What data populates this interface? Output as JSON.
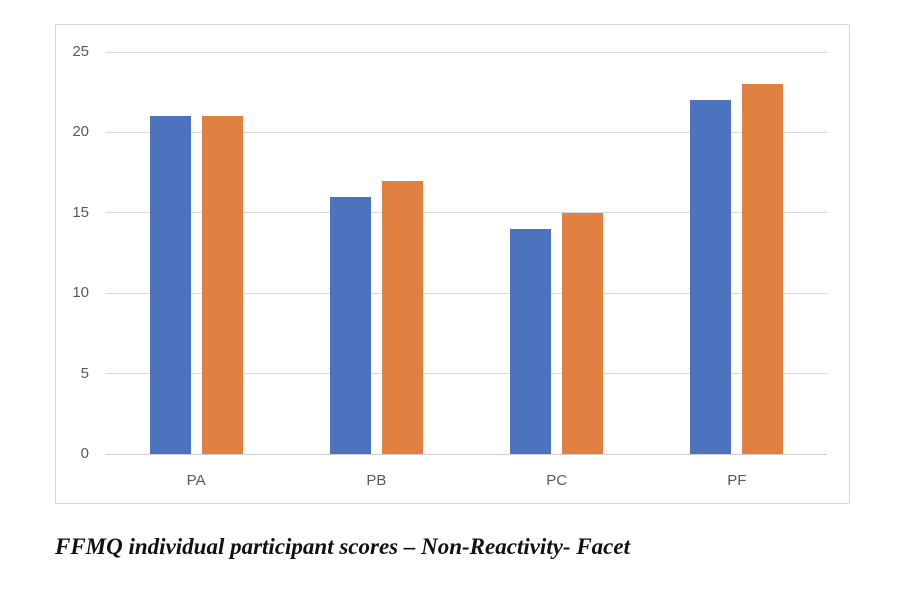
{
  "caption": {
    "text": "FFMQ individual participant scores – Non-Reactivity- Facet"
  },
  "chart_data": {
    "type": "bar",
    "title": "",
    "xlabel": "",
    "ylabel": "",
    "categories": [
      "PA",
      "PB",
      "PC",
      "PF"
    ],
    "series": [
      {
        "name": "blue-series",
        "color": "#4C74BE",
        "values": [
          21,
          16,
          14,
          22
        ]
      },
      {
        "name": "orange-series",
        "color": "#E08142",
        "values": [
          21,
          17,
          15,
          23
        ]
      }
    ],
    "ylim": [
      0,
      25
    ],
    "yticks": [
      0,
      5,
      10,
      15,
      20,
      25
    ],
    "grid": true,
    "legend": "none",
    "colors": {
      "gridline": "#d9d9d9",
      "axis_line": "#cfcfcf",
      "tick_label": "#595959",
      "frame_border": "#d9d9d9",
      "background": "#ffffff"
    }
  }
}
